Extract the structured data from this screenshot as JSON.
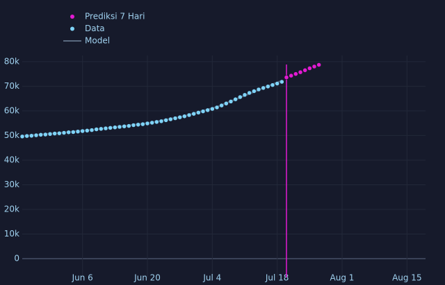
{
  "chart_data": {
    "type": "scatter",
    "xlim": [
      "05-24",
      "08-19"
    ],
    "xticks": [
      {
        "value": "06-06",
        "label": "Jun 6"
      },
      {
        "value": "06-20",
        "label": "Jun 20"
      },
      {
        "value": "07-04",
        "label": "Jul 4"
      },
      {
        "value": "07-18",
        "label": "Jul 18"
      },
      {
        "value": "08-01",
        "label": "Aug 1"
      },
      {
        "value": "08-15",
        "label": "Aug 15"
      }
    ],
    "ylim": [
      -7600,
      82500
    ],
    "yticks": [
      0,
      {
        "value": 10000,
        "label": "10k"
      },
      {
        "value": 20000,
        "label": "20k"
      },
      {
        "value": 30000,
        "label": "30k"
      },
      {
        "value": 40000,
        "label": "40k"
      },
      {
        "value": 50000,
        "label": "50k"
      },
      {
        "value": 60000,
        "label": "60k"
      },
      {
        "value": 70000,
        "label": "70k"
      },
      {
        "value": 80000,
        "label": "80k"
      }
    ],
    "grid": true,
    "vline": {
      "x": "07-20",
      "color": "#e21ad2"
    },
    "series": [
      {
        "name": "Prediksi 7 Hari",
        "color": "#e21ad2",
        "mode": "markers",
        "x": [
          "07-20",
          "07-21",
          "07-22",
          "07-23",
          "07-24",
          "07-25",
          "07-26",
          "07-27"
        ],
        "values": [
          73600,
          74300,
          75000,
          75700,
          76500,
          77300,
          78000,
          78700
        ]
      },
      {
        "name": "Data",
        "color": "#7fd3f7",
        "mode": "markers",
        "x": [
          "05-24",
          "05-25",
          "05-26",
          "05-27",
          "05-28",
          "05-29",
          "05-30",
          "05-31",
          "06-01",
          "06-02",
          "06-03",
          "06-04",
          "06-05",
          "06-06",
          "06-07",
          "06-08",
          "06-09",
          "06-10",
          "06-11",
          "06-12",
          "06-13",
          "06-14",
          "06-15",
          "06-16",
          "06-17",
          "06-18",
          "06-19",
          "06-20",
          "06-21",
          "06-22",
          "06-23",
          "06-24",
          "06-25",
          "06-26",
          "06-27",
          "06-28",
          "06-29",
          "06-30",
          "07-01",
          "07-02",
          "07-03",
          "07-04",
          "07-05",
          "07-06",
          "07-07",
          "07-08",
          "07-09",
          "07-10",
          "07-11",
          "07-12",
          "07-13",
          "07-14",
          "07-15",
          "07-16",
          "07-17",
          "07-18",
          "07-19"
        ],
        "values": [
          49600,
          49800,
          49900,
          50100,
          50300,
          50400,
          50600,
          50800,
          50900,
          51100,
          51300,
          51400,
          51600,
          51800,
          52000,
          52200,
          52500,
          52700,
          52900,
          53100,
          53300,
          53500,
          53700,
          53900,
          54200,
          54400,
          54600,
          54900,
          55200,
          55500,
          55800,
          56200,
          56600,
          57000,
          57400,
          57800,
          58300,
          58800,
          59300,
          59800,
          60300,
          60800,
          61400,
          62200,
          63000,
          63800,
          64700,
          65600,
          66500,
          67300,
          68000,
          68700,
          69300,
          69900,
          70500,
          71100,
          71800
        ]
      },
      {
        "name": "Model",
        "color": "#5a6a80",
        "mode": "lines",
        "x": [
          "05-24",
          "05-31",
          "06-07",
          "06-14",
          "06-21",
          "06-28",
          "07-05",
          "07-12",
          "07-19"
        ],
        "values": [
          49800,
          50900,
          52100,
          53600,
          55300,
          57900,
          61600,
          67000,
          72300
        ]
      }
    ]
  }
}
